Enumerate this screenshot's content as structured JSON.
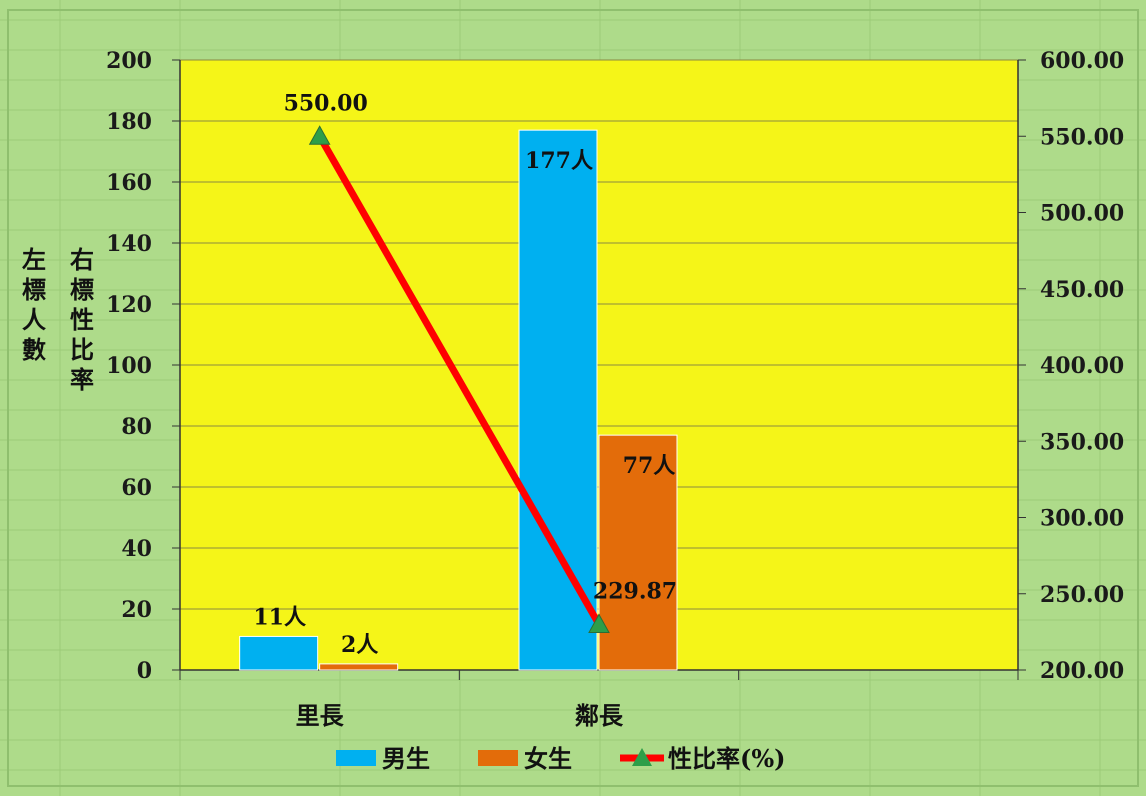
{
  "chart_data": {
    "type": "bar",
    "categories": [
      "里長",
      "鄰長"
    ],
    "series": [
      {
        "name": "男生",
        "axis": "left",
        "values": [
          11,
          177
        ],
        "labels": [
          "11人",
          "177人"
        ],
        "color": "#00b0f0"
      },
      {
        "name": "女生",
        "axis": "left",
        "values": [
          2,
          77
        ],
        "labels": [
          "2人",
          "77人"
        ],
        "color": "#e36c0a"
      },
      {
        "name": "性比率(%)",
        "axis": "right",
        "type": "line",
        "values": [
          550.0,
          229.87
        ],
        "labels": [
          "550.00",
          "229.87"
        ],
        "color": "#ff0000",
        "marker_color": "#2e9e49"
      }
    ],
    "y_left": {
      "label_chars": [
        "左",
        "標",
        "人",
        "數"
      ],
      "ylim": [
        0,
        200
      ],
      "ticks": [
        "0",
        "20",
        "40",
        "60",
        "80",
        "100",
        "120",
        "140",
        "160",
        "180",
        "200"
      ]
    },
    "y_right": {
      "label_chars": [
        "右",
        "標",
        "性",
        "比",
        "率"
      ],
      "ylim": [
        200,
        600
      ],
      "ticks": [
        "200.00",
        "250.00",
        "300.00",
        "350.00",
        "400.00",
        "450.00",
        "500.00",
        "550.00",
        "600.00"
      ]
    },
    "plot_background": "#f5f518",
    "outer_background": "#aedb8a",
    "grid": true,
    "legend_position": "bottom"
  }
}
